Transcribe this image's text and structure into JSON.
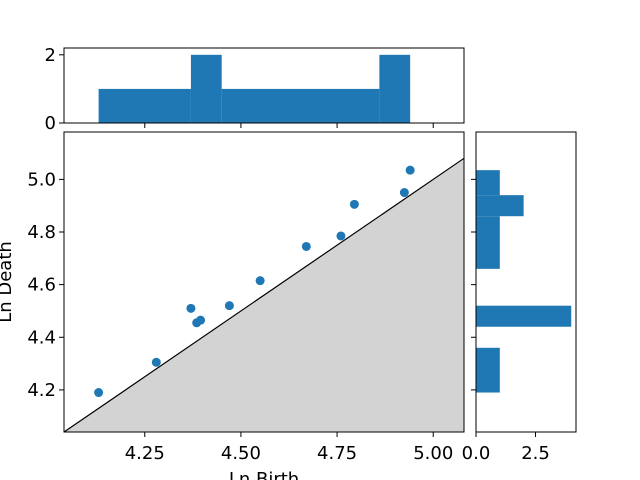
{
  "chart_data": {
    "type": "scatter",
    "xlabel": "Ln Birth",
    "ylabel": "Ln Death",
    "xlim": [
      4.04,
      5.08
    ],
    "ylim": [
      4.04,
      5.18
    ],
    "xticks": [
      4.25,
      4.5,
      4.75,
      5.0
    ],
    "xtick_labels": [
      "4.25",
      "4.50",
      "4.75",
      "5.00"
    ],
    "yticks": [
      4.2,
      4.4,
      4.6,
      4.8,
      5.0
    ],
    "ytick_labels": [
      "4.2",
      "4.4",
      "4.6",
      "4.8",
      "5.0"
    ],
    "points": [
      {
        "x": 4.13,
        "y": 4.19
      },
      {
        "x": 4.28,
        "y": 4.305
      },
      {
        "x": 4.37,
        "y": 4.51
      },
      {
        "x": 4.385,
        "y": 4.455
      },
      {
        "x": 4.395,
        "y": 4.465
      },
      {
        "x": 4.47,
        "y": 4.52
      },
      {
        "x": 4.55,
        "y": 4.615
      },
      {
        "x": 4.67,
        "y": 4.745
      },
      {
        "x": 4.76,
        "y": 4.785
      },
      {
        "x": 4.795,
        "y": 4.905
      },
      {
        "x": 4.925,
        "y": 4.95
      },
      {
        "x": 4.94,
        "y": 5.035
      }
    ],
    "diagonal": true,
    "marker_color": "#1f77b4",
    "shade_color": "#d3d3d3",
    "top_hist": {
      "ylim": [
        0,
        2.2
      ],
      "yticks": [
        0,
        2
      ],
      "ytick_labels": [
        "0",
        "2"
      ],
      "bins": [
        {
          "x0": 4.13,
          "x1": 4.37,
          "count": 1
        },
        {
          "x0": 4.37,
          "x1": 4.45,
          "count": 2
        },
        {
          "x0": 4.45,
          "x1": 4.86,
          "count": 1
        },
        {
          "x0": 4.86,
          "x1": 4.94,
          "count": 2
        }
      ]
    },
    "right_hist": {
      "xlim": [
        0,
        4.2
      ],
      "xticks": [
        0,
        2.5
      ],
      "xtick_labels": [
        "0.0",
        "2.5"
      ],
      "bins": [
        {
          "y0": 4.19,
          "y1": 4.36,
          "count": 1
        },
        {
          "y0": 4.44,
          "y1": 4.52,
          "count": 4
        },
        {
          "y0": 4.66,
          "y1": 4.86,
          "count": 1
        },
        {
          "y0": 4.86,
          "y1": 4.94,
          "count": 2
        },
        {
          "y0": 4.94,
          "y1": 5.035,
          "count": 1
        }
      ]
    }
  }
}
